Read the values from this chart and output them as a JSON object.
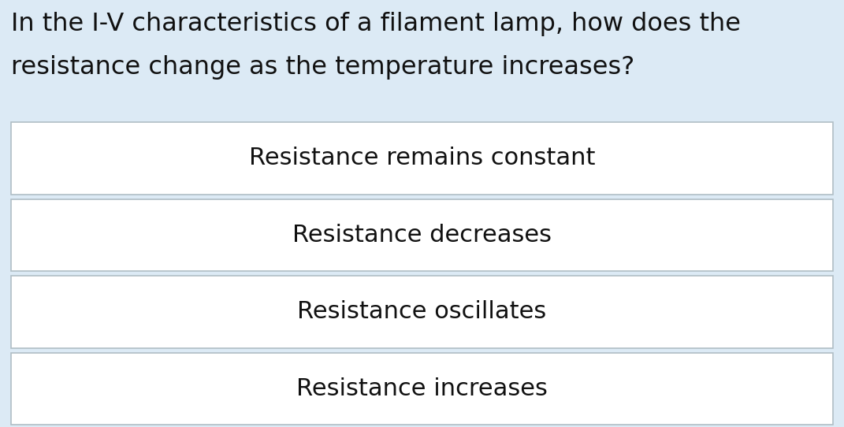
{
  "question_line1": "In the I-V characteristics of a filament lamp, how does the",
  "question_line2": "resistance change as the temperature increases?",
  "options": [
    "Resistance remains constant",
    "Resistance decreases",
    "Resistance oscillates",
    "Resistance increases"
  ],
  "bg_color": "#dceaf5",
  "box_color": "#ffffff",
  "box_edge_color": "#b0bec5",
  "text_color": "#111111",
  "question_fontsize": 23,
  "option_fontsize": 22,
  "fig_width": 10.71,
  "fig_height": 5.42,
  "dpi": 100
}
